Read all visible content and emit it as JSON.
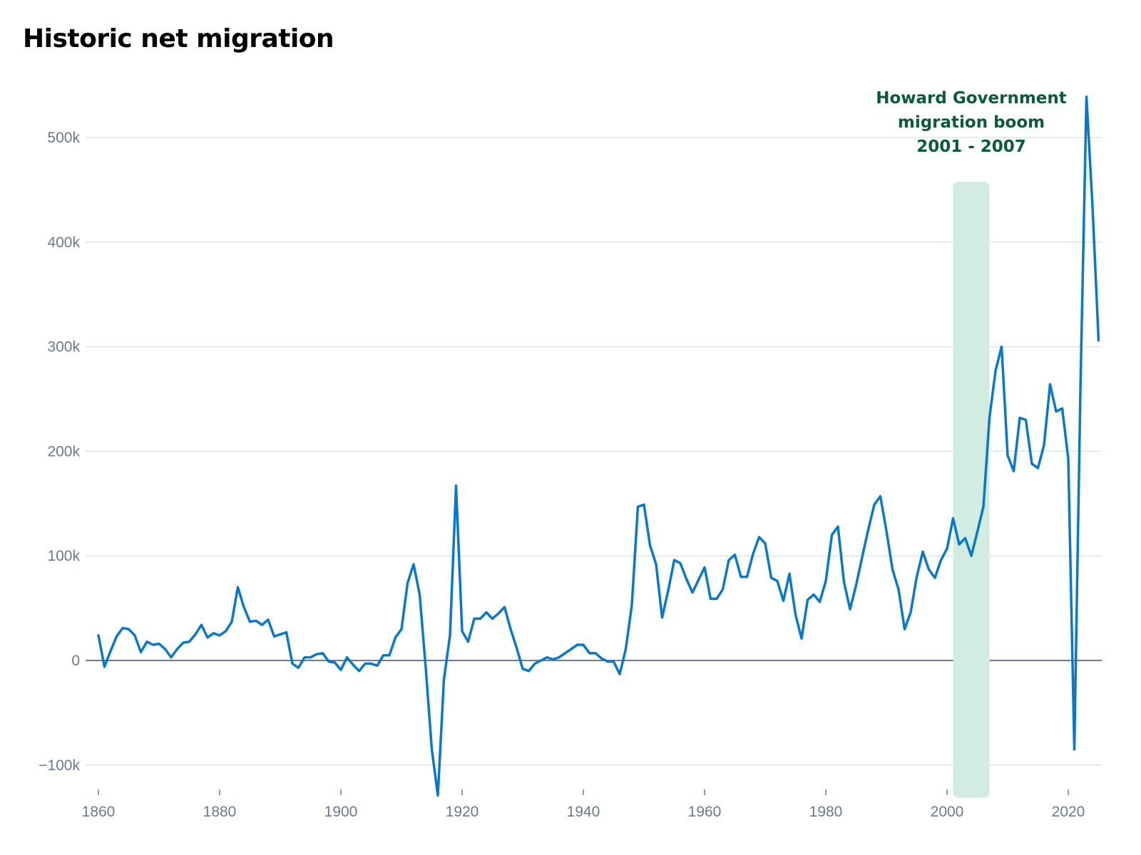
{
  "chart_data": {
    "type": "line",
    "title": "Historic net migration",
    "xlabel": "",
    "ylabel": "",
    "xlim": [
      1860,
      2025
    ],
    "ylim": [
      -140000,
      560000
    ],
    "grid": true,
    "legend": "none",
    "x_ticks": [
      {
        "value": 1860,
        "label": "1860"
      },
      {
        "value": 1880,
        "label": "1880"
      },
      {
        "value": 1900,
        "label": "1900"
      },
      {
        "value": 1920,
        "label": "1920"
      },
      {
        "value": 1940,
        "label": "1940"
      },
      {
        "value": 1960,
        "label": "1960"
      },
      {
        "value": 1980,
        "label": "1980"
      },
      {
        "value": 2000,
        "label": "2000"
      },
      {
        "value": 2020,
        "label": "2020"
      }
    ],
    "y_ticks": [
      {
        "value": 500000,
        "label": "500k"
      },
      {
        "value": 400000,
        "label": "400k"
      },
      {
        "value": 300000,
        "label": "300k"
      },
      {
        "value": 200000,
        "label": "200k"
      },
      {
        "value": 100000,
        "label": "100k"
      },
      {
        "value": 0,
        "label": "0"
      },
      {
        "value": -100000,
        "label": "−100k"
      }
    ],
    "highlight": {
      "start": 2001,
      "end": 2007,
      "label_lines": [
        "Howard Government",
        "migration boom",
        "2001 - 2007"
      ],
      "color": "#d2ece2",
      "text_color": "#0b5a3c"
    },
    "colors": {
      "line": "#0a78c8",
      "grid": "#dfe3e8",
      "zero_line": "#6e7a8e",
      "tick_text": "#6b7a8f"
    },
    "series": [
      {
        "x": [
          1860,
          1861,
          1862,
          1863,
          1864,
          1865,
          1866,
          1867,
          1868,
          1869,
          1870,
          1871,
          1872,
          1873,
          1874,
          1875,
          1876,
          1877,
          1878,
          1879,
          1880,
          1881,
          1882,
          1883,
          1884,
          1885,
          1886,
          1887,
          1888,
          1889,
          1890,
          1891,
          1892,
          1893,
          1894,
          1895,
          1896,
          1897,
          1898,
          1899,
          1900,
          1901,
          1902,
          1903,
          1904,
          1905,
          1906,
          1907,
          1908,
          1909,
          1910,
          1911,
          1912,
          1913,
          1914,
          1915,
          1916,
          1917,
          1918,
          1919,
          1920,
          1921,
          1922,
          1923,
          1924,
          1925,
          1926,
          1927,
          1928,
          1929,
          1930,
          1931,
          1932,
          1933,
          1934,
          1935,
          1936,
          1937,
          1938,
          1939,
          1940,
          1941,
          1942,
          1943,
          1944,
          1945,
          1946,
          1947,
          1948,
          1949,
          1950,
          1951,
          1952,
          1953,
          1954,
          1955,
          1956,
          1957,
          1958,
          1959,
          1960,
          1961,
          1962,
          1963,
          1964,
          1965,
          1966,
          1967,
          1968,
          1969,
          1970,
          1971,
          1972,
          1973,
          1974,
          1975,
          1976,
          1977,
          1978,
          1979,
          1980,
          1981,
          1982,
          1983,
          1984,
          1985,
          1986,
          1987,
          1988,
          1989,
          1990,
          1991,
          1992,
          1993,
          1994,
          1995,
          1996,
          1997,
          1998,
          1999,
          2000,
          2001,
          2002,
          2003,
          2004,
          2005,
          2006,
          2007,
          2008,
          2009,
          2010,
          2011,
          2012,
          2013,
          2014,
          2015,
          2016,
          2017,
          2018,
          2019,
          2020,
          2021,
          2022,
          2023,
          2024,
          2025
        ],
        "values": [
          24000,
          -6000,
          9000,
          23000,
          31000,
          30000,
          24000,
          8000,
          18000,
          15000,
          16000,
          11000,
          3000,
          11000,
          17000,
          18000,
          25000,
          34000,
          22000,
          26000,
          24000,
          28000,
          37000,
          70000,
          51000,
          37000,
          38000,
          34000,
          39000,
          23000,
          25000,
          27000,
          -3000,
          -7000,
          3000,
          3000,
          6000,
          7000,
          -1000,
          -2000,
          -9000,
          3000,
          -4000,
          -10000,
          -3000,
          -3000,
          -5000,
          5000,
          5000,
          22000,
          30000,
          74000,
          92000,
          63000,
          -7000,
          -85000,
          -129000,
          -18000,
          24000,
          167000,
          28000,
          18000,
          40000,
          40000,
          46000,
          40000,
          45000,
          51000,
          30000,
          12000,
          -8000,
          -10000,
          -3000,
          0,
          3000,
          1000,
          3000,
          7000,
          11000,
          15000,
          15000,
          7000,
          7000,
          2000,
          -1000,
          -1000,
          -13000,
          11000,
          53000,
          147000,
          149000,
          110000,
          92000,
          41000,
          67000,
          96000,
          93000,
          78000,
          65000,
          77000,
          89000,
          59000,
          59000,
          68000,
          96000,
          101000,
          80000,
          80000,
          102000,
          118000,
          112000,
          79000,
          76000,
          57000,
          83000,
          44000,
          21000,
          58000,
          63000,
          56000,
          76000,
          120000,
          128000,
          75000,
          49000,
          72000,
          99000,
          125000,
          149000,
          157000,
          124000,
          87000,
          68000,
          30000,
          46000,
          80000,
          104000,
          87000,
          79000,
          96000,
          107000,
          136000,
          111000,
          117000,
          100000,
          123000,
          147000,
          232000,
          277000,
          300000,
          196000,
          181000,
          232000,
          230000,
          188000,
          184000,
          206000,
          264000,
          238000,
          241000,
          193000,
          -85000,
          258000,
          539000,
          434000,
          306000
        ]
      }
    ]
  }
}
